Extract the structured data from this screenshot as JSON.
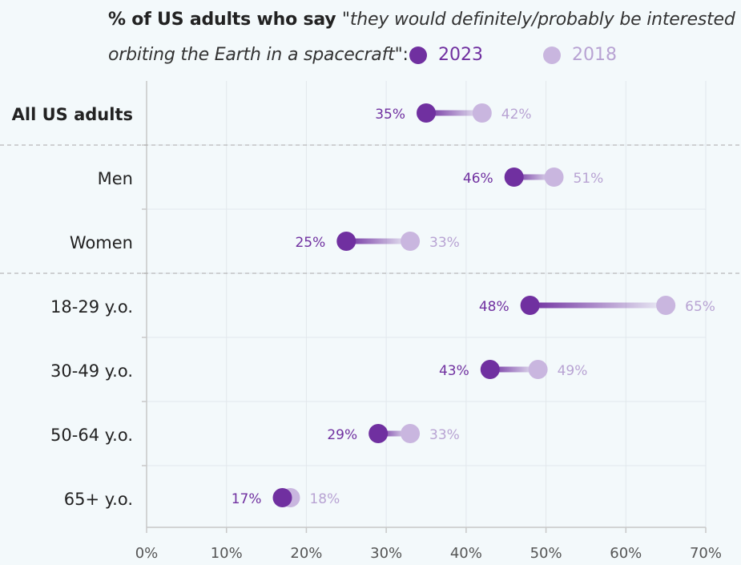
{
  "title": {
    "bold": "% of US adults who say ",
    "italic_1": "\"they would definitely/probably be interested in",
    "italic_2": "orbiting the Earth in a spacecraft\"",
    "colon": ":"
  },
  "colors": {
    "year_2023": "#7030a0",
    "year_2018": "#c9b6df",
    "label_2023": "#7030a0",
    "label_2018": "#b8a3d3",
    "axis": "#c8c8c8",
    "grid": "#e2e8ec",
    "separator": "#a8a8a8",
    "category_text": "#222222",
    "tick_text": "#555555"
  },
  "chart_data": {
    "type": "dumbbell",
    "title": "% of US adults who say \"they would definitely/probably be interested in orbiting the Earth in a spacecraft\":",
    "xlim": [
      0,
      70
    ],
    "xticks": [
      0,
      10,
      20,
      30,
      40,
      50,
      60,
      70
    ],
    "xtick_labels": [
      "0%",
      "10%",
      "20%",
      "30%",
      "40%",
      "50%",
      "60%",
      "70%"
    ],
    "legend": [
      {
        "name": "2023",
        "key": "year_2023"
      },
      {
        "name": "2018",
        "key": "year_2018"
      }
    ],
    "categories": [
      {
        "label": "All US adults",
        "v2023": 35,
        "v2018": 42,
        "l2023": "35%",
        "l2018": "42%",
        "emphasis": true
      },
      {
        "label": "Men",
        "v2023": 46,
        "v2018": 51,
        "l2023": "46%",
        "l2018": "51%"
      },
      {
        "label": "Women",
        "v2023": 25,
        "v2018": 33,
        "l2023": "25%",
        "l2018": "33%"
      },
      {
        "label": "18-29 y.o.",
        "v2023": 48,
        "v2018": 65,
        "l2023": "48%",
        "l2018": "65%"
      },
      {
        "label": "30-49 y.o.",
        "v2023": 43,
        "v2018": 49,
        "l2023": "43%",
        "l2018": "49%"
      },
      {
        "label": "50-64 y.o.",
        "v2023": 29,
        "v2018": 33,
        "l2023": "29%",
        "l2018": "33%"
      },
      {
        "label": "65+ y.o.",
        "v2023": 17,
        "v2018": 18,
        "l2023": "17%",
        "l2018": "18%"
      }
    ],
    "group_separators_after": [
      "All US adults",
      "Women"
    ]
  }
}
